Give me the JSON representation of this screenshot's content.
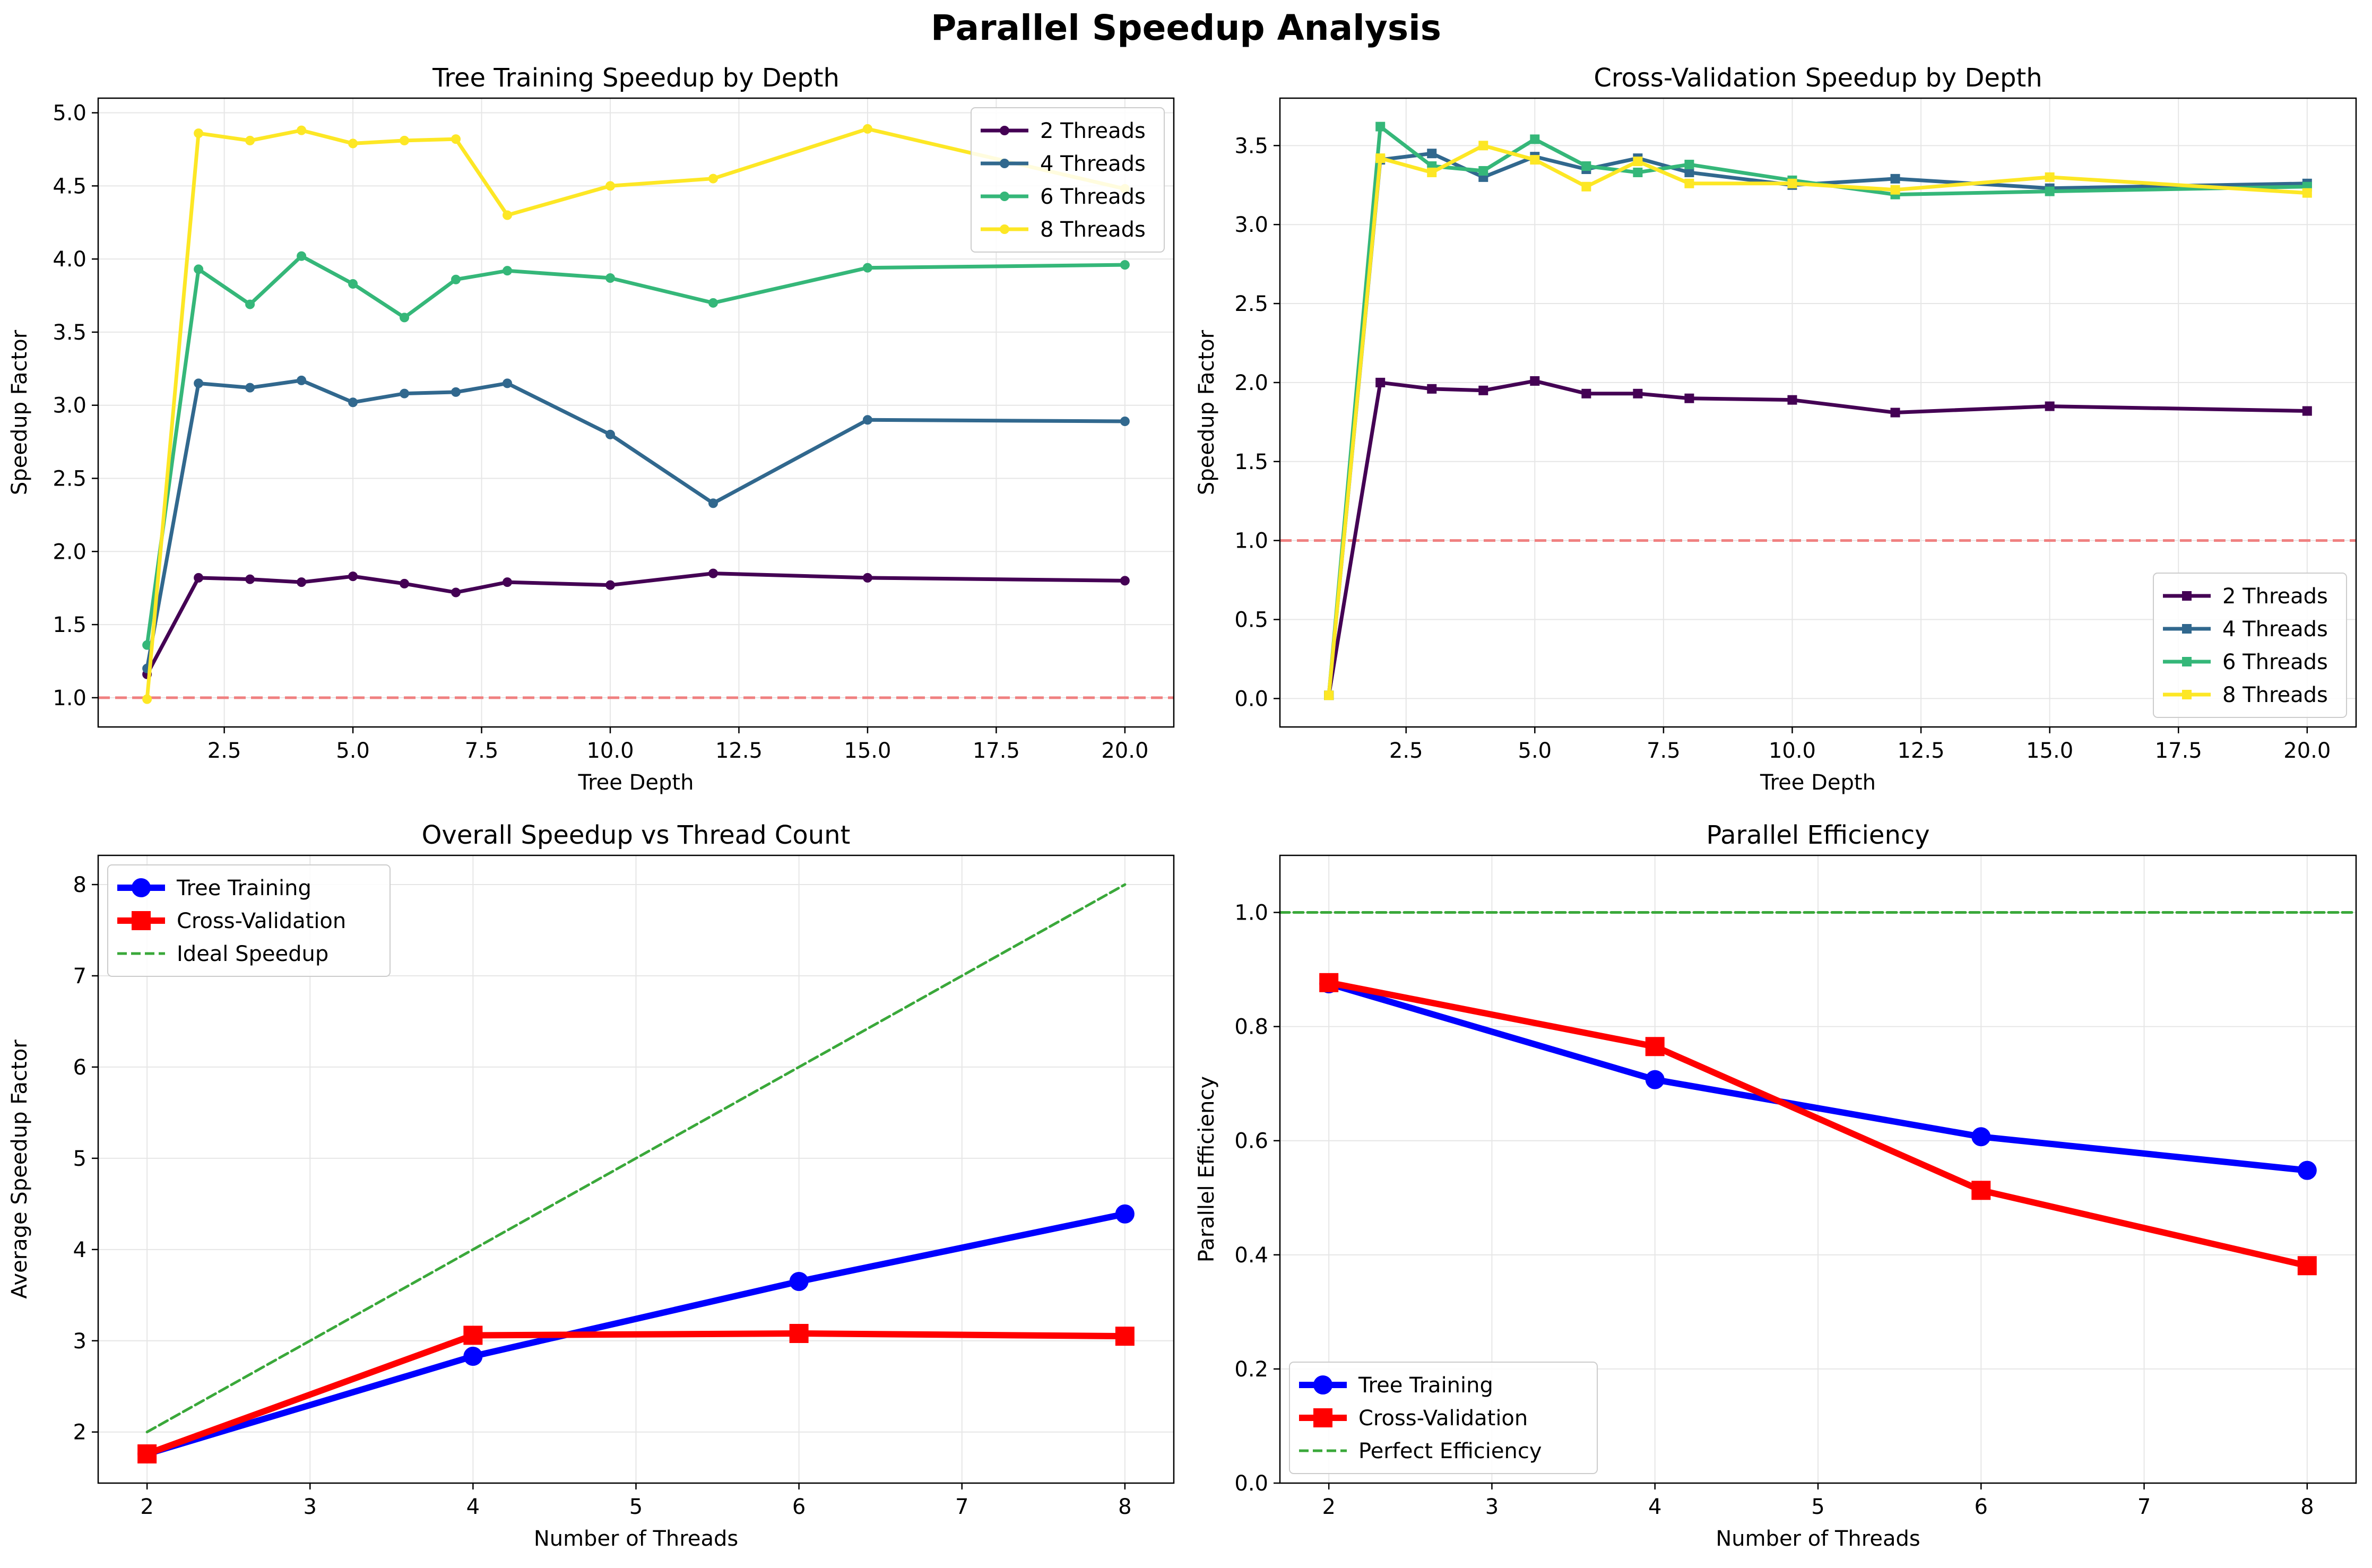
{
  "figure": {
    "title": "Parallel Speedup Analysis"
  },
  "chart_data": [
    {
      "type": "line",
      "title": "Tree Training Speedup by Depth",
      "xlabel": "Tree Depth",
      "ylabel": "Speedup Factor",
      "xlim": [
        0.05,
        20.95
      ],
      "ylim": [
        0.8,
        5.1
      ],
      "xticks": [
        2.5,
        5.0,
        7.5,
        10.0,
        12.5,
        15.0,
        17.5,
        20.0
      ],
      "xtick_labels": [
        "2.5",
        "5.0",
        "7.5",
        "10.0",
        "12.5",
        "15.0",
        "17.5",
        "20.0"
      ],
      "yticks": [
        1.0,
        1.5,
        2.0,
        2.5,
        3.0,
        3.5,
        4.0,
        4.5,
        5.0
      ],
      "ytick_labels": [
        "1.0",
        "1.5",
        "2.0",
        "2.5",
        "3.0",
        "3.5",
        "4.0",
        "4.5",
        "5.0"
      ],
      "grid": true,
      "legend_position": "top-right",
      "marker": "circle",
      "reference_line": {
        "y": 1.0,
        "color": "#f08080",
        "style": "dashed"
      },
      "x": [
        1,
        2,
        3,
        4,
        5,
        6,
        7,
        8,
        10,
        12,
        15,
        20
      ],
      "series": [
        {
          "name": "2 Threads",
          "color": "#440154",
          "values": [
            1.16,
            1.82,
            1.81,
            1.79,
            1.83,
            1.78,
            1.72,
            1.79,
            1.77,
            1.85,
            1.82,
            1.8
          ]
        },
        {
          "name": "4 Threads",
          "color": "#31688e",
          "values": [
            1.2,
            3.15,
            3.12,
            3.17,
            3.02,
            3.08,
            3.09,
            3.15,
            2.8,
            2.33,
            2.9,
            2.89
          ]
        },
        {
          "name": "6 Threads",
          "color": "#35b779",
          "values": [
            1.36,
            3.93,
            3.69,
            4.02,
            3.83,
            3.6,
            3.86,
            3.92,
            3.87,
            3.7,
            3.94,
            3.96
          ]
        },
        {
          "name": "8 Threads",
          "color": "#fde725",
          "values": [
            0.99,
            4.86,
            4.81,
            4.88,
            4.79,
            4.81,
            4.82,
            4.3,
            4.5,
            4.55,
            4.89,
            4.48
          ]
        }
      ]
    },
    {
      "type": "line",
      "title": "Cross-Validation Speedup by Depth",
      "xlabel": "Tree Depth",
      "ylabel": "Speedup Factor",
      "xlim": [
        0.05,
        20.95
      ],
      "ylim": [
        -0.18,
        3.8
      ],
      "xticks": [
        2.5,
        5.0,
        7.5,
        10.0,
        12.5,
        15.0,
        17.5,
        20.0
      ],
      "xtick_labels": [
        "2.5",
        "5.0",
        "7.5",
        "10.0",
        "12.5",
        "15.0",
        "17.5",
        "20.0"
      ],
      "yticks": [
        0.0,
        0.5,
        1.0,
        1.5,
        2.0,
        2.5,
        3.0,
        3.5
      ],
      "ytick_labels": [
        "0.0",
        "0.5",
        "1.0",
        "1.5",
        "2.0",
        "2.5",
        "3.0",
        "3.5"
      ],
      "grid": true,
      "legend_position": "bottom-right",
      "marker": "square",
      "reference_line": {
        "y": 1.0,
        "color": "#f08080",
        "style": "dashed"
      },
      "x": [
        1,
        2,
        3,
        4,
        5,
        6,
        7,
        8,
        10,
        12,
        15,
        20
      ],
      "series": [
        {
          "name": "2 Threads",
          "color": "#440154",
          "values": [
            0.02,
            2.0,
            1.96,
            1.95,
            2.01,
            1.93,
            1.93,
            1.9,
            1.89,
            1.81,
            1.85,
            1.82
          ]
        },
        {
          "name": "4 Threads",
          "color": "#31688e",
          "values": [
            0.02,
            3.41,
            3.45,
            3.3,
            3.43,
            3.35,
            3.42,
            3.33,
            3.25,
            3.29,
            3.23,
            3.26
          ]
        },
        {
          "name": "6 Threads",
          "color": "#35b779",
          "values": [
            0.02,
            3.62,
            3.37,
            3.34,
            3.54,
            3.37,
            3.33,
            3.38,
            3.28,
            3.19,
            3.21,
            3.24
          ]
        },
        {
          "name": "8 Threads",
          "color": "#fde725",
          "values": [
            0.02,
            3.42,
            3.33,
            3.5,
            3.41,
            3.24,
            3.4,
            3.26,
            3.26,
            3.22,
            3.3,
            3.2
          ]
        }
      ]
    },
    {
      "type": "line",
      "title": "Overall Speedup vs Thread Count",
      "xlabel": "Number of Threads",
      "ylabel": "Average Speedup Factor",
      "xlim": [
        1.7,
        8.3
      ],
      "ylim": [
        1.44,
        8.32
      ],
      "xticks": [
        2,
        3,
        4,
        5,
        6,
        7,
        8
      ],
      "xtick_labels": [
        "2",
        "3",
        "4",
        "5",
        "6",
        "7",
        "8"
      ],
      "yticks": [
        2,
        3,
        4,
        5,
        6,
        7,
        8
      ],
      "ytick_labels": [
        "2",
        "3",
        "4",
        "5",
        "6",
        "7",
        "8"
      ],
      "grid": true,
      "legend_position": "top-left",
      "x": [
        2,
        4,
        6,
        8
      ],
      "series": [
        {
          "name": "Tree Training",
          "color": "#0000ff",
          "marker": "circle",
          "style": "solid",
          "values": [
            1.76,
            2.83,
            3.65,
            4.39
          ]
        },
        {
          "name": "Cross-Validation",
          "color": "#ff0000",
          "marker": "square",
          "style": "solid",
          "values": [
            1.76,
            3.06,
            3.08,
            3.05
          ]
        },
        {
          "name": "Ideal Speedup",
          "color": "#3aa83a",
          "marker": "none",
          "style": "dashed",
          "values": [
            2,
            4,
            6,
            8
          ]
        }
      ]
    },
    {
      "type": "line",
      "title": "Parallel Efficiency",
      "xlabel": "Number of Threads",
      "ylabel": "Parallel Efficiency",
      "xlim": [
        1.7,
        8.3
      ],
      "ylim": [
        0.0,
        1.1
      ],
      "xticks": [
        2,
        3,
        4,
        5,
        6,
        7,
        8
      ],
      "xtick_labels": [
        "2",
        "3",
        "4",
        "5",
        "6",
        "7",
        "8"
      ],
      "yticks": [
        0.0,
        0.2,
        0.4,
        0.6,
        0.8,
        1.0
      ],
      "ytick_labels": [
        "0.0",
        "0.2",
        "0.4",
        "0.6",
        "0.8",
        "1.0"
      ],
      "grid": true,
      "legend_position": "bottom-left",
      "x": [
        2,
        4,
        6,
        8
      ],
      "series": [
        {
          "name": "Tree Training",
          "color": "#0000ff",
          "marker": "circle",
          "style": "solid",
          "values": [
            0.875,
            0.707,
            0.607,
            0.548
          ]
        },
        {
          "name": "Cross-Validation",
          "color": "#ff0000",
          "marker": "square",
          "style": "solid",
          "values": [
            0.877,
            0.765,
            0.513,
            0.381
          ]
        },
        {
          "name": "Perfect Efficiency",
          "color": "#3aa83a",
          "marker": "none",
          "style": "dashed",
          "values": [
            1.0,
            1.0,
            1.0,
            1.0
          ],
          "span_full_width": true
        }
      ]
    }
  ]
}
